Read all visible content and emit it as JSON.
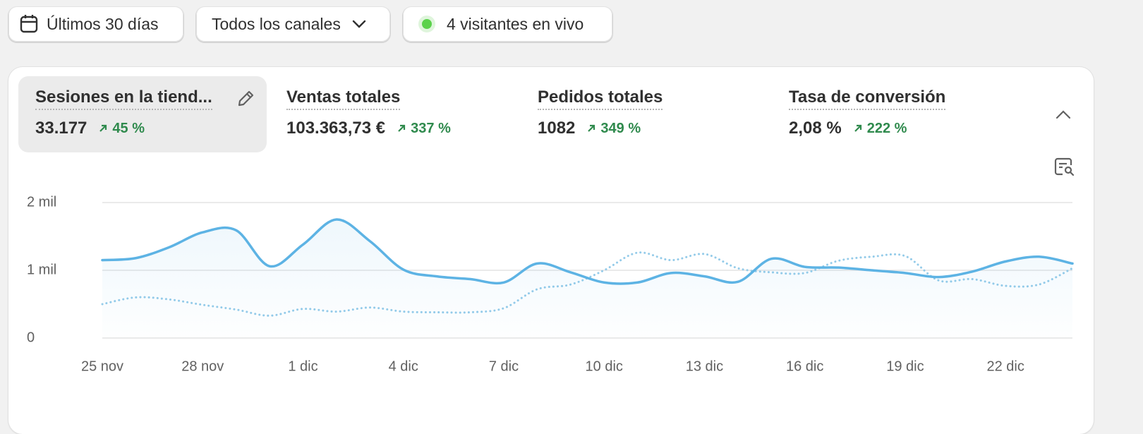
{
  "toolbar": {
    "date_range": "Últimos 30 días",
    "channels": "Todos los canales",
    "live": "4 visitantes en vivo"
  },
  "metrics": [
    {
      "label": "Sesiones en la tiend...",
      "value": "33.177",
      "change": "45 %"
    },
    {
      "label": "Ventas totales",
      "value": "103.363,73 €",
      "change": "337 %"
    },
    {
      "label": "Pedidos totales",
      "value": "1082",
      "change": "349 %"
    },
    {
      "label": "Tasa de conversión",
      "value": "2,08 %",
      "change": "222 %"
    }
  ],
  "chart_data": {
    "type": "line",
    "categories": [
      "25 nov",
      null,
      null,
      "28 nov",
      null,
      null,
      "1 dic",
      null,
      null,
      "4 dic",
      null,
      null,
      "7 dic",
      null,
      null,
      "10 dic",
      null,
      null,
      "13 dic",
      null,
      null,
      "16 dic",
      null,
      null,
      "19 dic",
      null,
      null,
      "22 dic",
      null,
      null
    ],
    "series": [
      {
        "color": "#5db3e4",
        "line_style": "solid",
        "area": true,
        "values": [
          1150,
          1180,
          1340,
          1560,
          1590,
          1060,
          1380,
          1750,
          1430,
          1010,
          910,
          870,
          820,
          1100,
          970,
          820,
          820,
          960,
          910,
          830,
          1170,
          1050,
          1040,
          1000,
          960,
          900,
          980,
          1130,
          1200,
          1100
        ]
      },
      {
        "color": "#94cbe9",
        "line_style": "dotted",
        "area": false,
        "values": [
          500,
          600,
          570,
          490,
          420,
          330,
          430,
          390,
          450,
          390,
          380,
          380,
          440,
          720,
          790,
          1000,
          1260,
          1150,
          1240,
          1030,
          970,
          960,
          1140,
          1200,
          1210,
          850,
          870,
          770,
          790,
          1030
        ]
      }
    ],
    "ylim": [
      0,
      2000
    ],
    "yticks": [
      0,
      {
        "value": 1000,
        "label": "1 mil"
      },
      {
        "value": 2000,
        "label": "2 mil"
      }
    ],
    "grid": true
  }
}
